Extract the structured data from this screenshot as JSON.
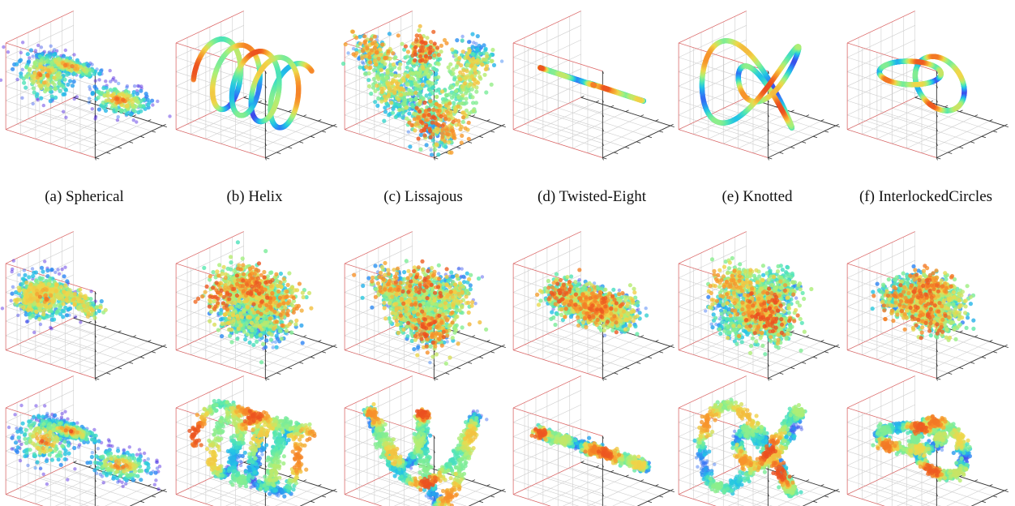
{
  "figure": {
    "columns": [
      {
        "caption": "(a) Spherical",
        "shape": "spherical"
      },
      {
        "caption": "(b) Helix",
        "shape": "helix"
      },
      {
        "caption": "(c) Lissajous",
        "shape": "lissajous"
      },
      {
        "caption": "(d) Twisted-Eight",
        "shape": "twisted-eight"
      },
      {
        "caption": "(e) Knotted",
        "shape": "knotted"
      },
      {
        "caption": "(f) InterlockedCircles",
        "shape": "interlocked-circles"
      }
    ],
    "rows": [
      {
        "render": "curve"
      },
      {
        "render": "diffuse"
      },
      {
        "render": "noisy-curve"
      }
    ]
  },
  "chart_data": {
    "type": "scatter",
    "projection": "3d",
    "grid": true,
    "tick_labels": false,
    "colormap": [
      "#4b1fe0",
      "#2f7cf6",
      "#22c3e6",
      "#55e8b0",
      "#a8f07a",
      "#f0d64a",
      "#f7902a",
      "#e3261a"
    ],
    "axis_pane_edge_color": "#e06464",
    "grid_color": "#cfcfcf"
  }
}
